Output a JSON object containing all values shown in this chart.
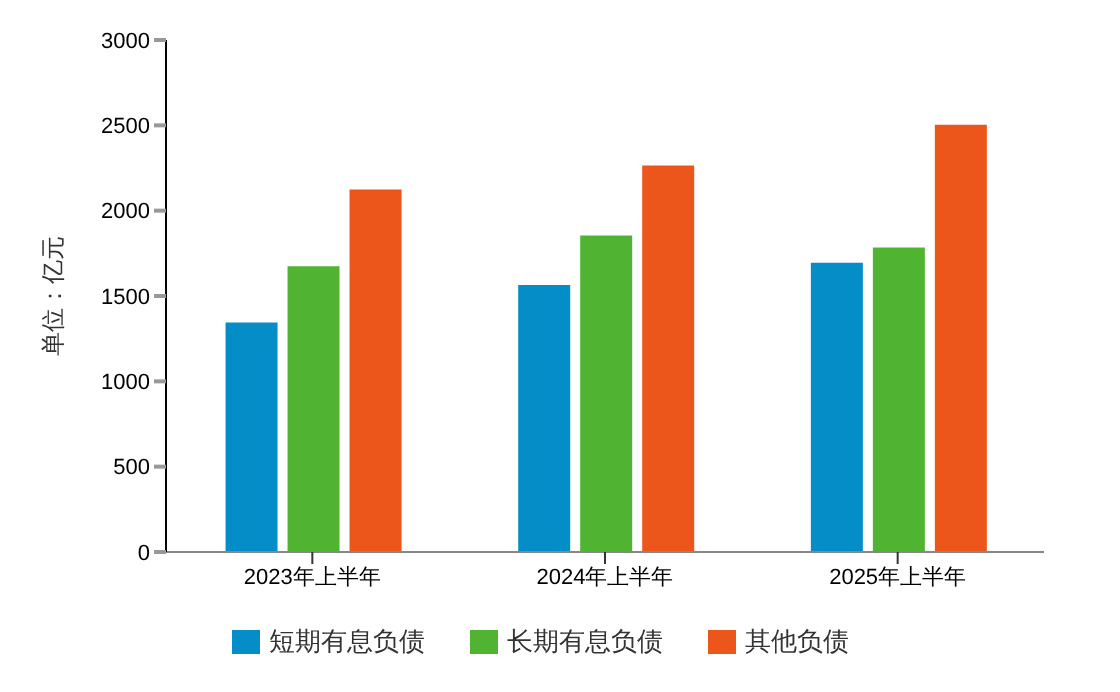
{
  "chart_data": {
    "type": "bar",
    "ylabel": "单位：亿元",
    "categories": [
      "2023年上半年",
      "2024年上半年",
      "2025年上半年"
    ],
    "series": [
      {
        "name": "短期有息负债",
        "color": "#058dc7",
        "values": [
          1350,
          1570,
          1700
        ]
      },
      {
        "name": "长期有息负债",
        "color": "#50b432",
        "values": [
          1680,
          1860,
          1790
        ]
      },
      {
        "name": "其他负债",
        "color": "#ed561b",
        "values": [
          2130,
          2270,
          2510
        ]
      }
    ],
    "ylim": [
      0,
      3000
    ],
    "yticks": [
      0,
      500,
      1000,
      1500,
      2000,
      2500,
      3000
    ],
    "grid": false,
    "legend": "bottom"
  }
}
